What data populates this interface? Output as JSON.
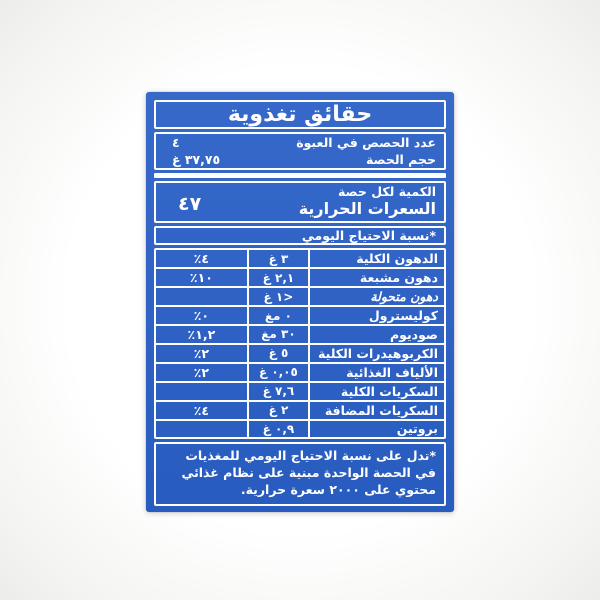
{
  "label": {
    "title": "حقائق تغذوية",
    "serving_info": {
      "servings_label": "عدد الحصص في العبوة",
      "servings_value": "٤",
      "serving_size_label": "حجم الحصة",
      "serving_size_value": "٣٧,٧٥ غ"
    },
    "calories": {
      "amount_per_serving_label": "الكمية لكل حصة",
      "calories_label": "السعرات الحرارية",
      "calories_value": "٤٧"
    },
    "daily_value_header": "*نسبة الاحتياج اليومي",
    "nutrients": [
      {
        "name": "الدهون الكلية",
        "amount": "٣ غ",
        "dv": "٤٪",
        "italic": false
      },
      {
        "name": "دهون مشبعة",
        "amount": "٢,١ غ",
        "dv": "١٠٪",
        "italic": false
      },
      {
        "name": "دهون متحولة",
        "amount": "<١ غ",
        "dv": "",
        "italic": true
      },
      {
        "name": "كوليسترول",
        "amount": "٠ مغ",
        "dv": "٠٪",
        "italic": false
      },
      {
        "name": "صوديوم",
        "amount": "٣٠ مغ",
        "dv": "١,٢٪",
        "italic": false
      },
      {
        "name": "الكربوهيدرات الكلية",
        "amount": "٥ غ",
        "dv": "٢٪",
        "italic": false
      },
      {
        "name": "الألياف الغذائية",
        "amount": "٠,٠٥ غ",
        "dv": "٢٪",
        "italic": false
      },
      {
        "name": "السكريات الكلية",
        "amount": "٧,٦ غ",
        "dv": "",
        "italic": false
      },
      {
        "name": "السكريات المضافة",
        "amount": "٢ غ",
        "dv": "٤٪",
        "italic": false
      },
      {
        "name": "بروتين",
        "amount": "٠,٩ غ",
        "dv": "",
        "italic": false
      }
    ],
    "footnote": "*تدل على نسبة الاحتياج اليومي للمغذيات في الحصة الواحدة مبنية على نظام غذائي محتوي على ٢٠٠٠ سعرة حرارية.",
    "colors": {
      "label_blue": "#2b61c7",
      "rule_white": "#fdfdfb",
      "text_white": "#ffffff",
      "background": "#f7f7f5"
    }
  }
}
